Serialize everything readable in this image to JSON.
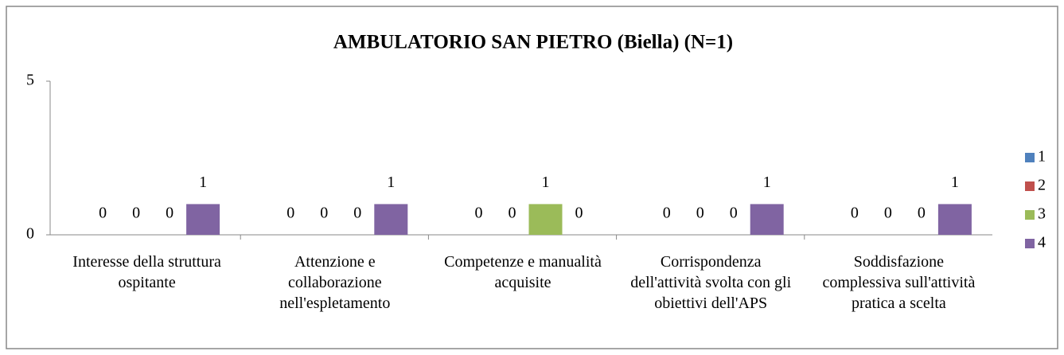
{
  "chart_data": {
    "type": "bar",
    "title": "AMBULATORIO SAN PIETRO (Biella) (N=1)",
    "categories": [
      "Interesse della struttura ospitante",
      "Attenzione e collaborazione nell'espletamento",
      "Competenze e manualità acquisite",
      "Corrispondenza dell'attività svolta con gli obiettivi dell'APS",
      "Soddisfazione complessiva sull'attività pratica a scelta"
    ],
    "series": [
      {
        "name": "1",
        "color": "#4f81bd",
        "values": [
          0,
          0,
          0,
          0,
          0
        ]
      },
      {
        "name": "2",
        "color": "#c0504d",
        "values": [
          0,
          0,
          0,
          0,
          0
        ]
      },
      {
        "name": "3",
        "color": "#9bbb59",
        "values": [
          0,
          0,
          1,
          0,
          0
        ]
      },
      {
        "name": "4",
        "color": "#8064a2",
        "values": [
          1,
          1,
          0,
          1,
          1
        ]
      }
    ],
    "ylim": [
      0,
      5
    ],
    "yticks": [
      0,
      5
    ],
    "legend": "right"
  }
}
